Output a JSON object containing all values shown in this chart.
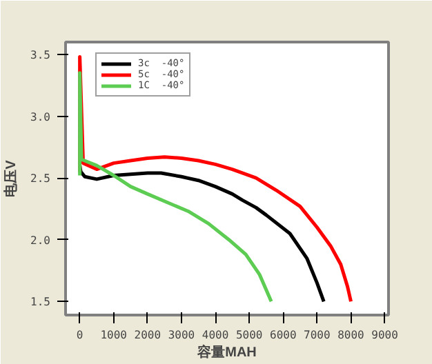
{
  "chart_data": {
    "type": "line",
    "xlabel": "容量MAH",
    "ylabel": "电压V",
    "xlim": [
      -420,
      9110
    ],
    "ylim": [
      1.39,
      3.6
    ],
    "xticks": [
      0,
      1000,
      2000,
      3000,
      4000,
      5000,
      6000,
      7000,
      8000,
      9000
    ],
    "yticks": [
      {
        "value": 1.5,
        "label": "1.5"
      },
      {
        "value": 2.0,
        "label": "2.0"
      },
      {
        "value": 2.5,
        "label": "2.5"
      },
      {
        "value": 3.0,
        "label": "3.0"
      },
      {
        "value": 3.5,
        "label": "3.5"
      }
    ],
    "grid": false,
    "legend": "top left",
    "line_style": "solid",
    "marker": "none",
    "series": [
      {
        "name": "3c  -40°",
        "color": "#000000",
        "x": [
          0,
          30,
          150,
          500,
          1000,
          1500,
          2000,
          2400,
          3000,
          3500,
          4000,
          4500,
          4800,
          5200,
          5500,
          6200,
          6700,
          7000,
          7200
        ],
        "values": [
          2.6,
          2.55,
          2.51,
          2.49,
          2.52,
          2.53,
          2.54,
          2.54,
          2.51,
          2.48,
          2.43,
          2.37,
          2.32,
          2.26,
          2.2,
          2.05,
          1.85,
          1.65,
          1.5
        ]
      },
      {
        "name": "5c  -40°",
        "color": "#ff0000",
        "x": [
          0,
          0,
          100,
          500,
          1000,
          1500,
          2000,
          2500,
          3000,
          3500,
          4000,
          4500,
          5200,
          5800,
          6500,
          7000,
          7400,
          7700,
          7900,
          8000
        ],
        "values": [
          2.55,
          3.48,
          2.62,
          2.57,
          2.62,
          2.64,
          2.66,
          2.67,
          2.66,
          2.64,
          2.61,
          2.57,
          2.5,
          2.4,
          2.27,
          2.1,
          1.95,
          1.8,
          1.62,
          1.5
        ]
      },
      {
        "name": "1C  -40°",
        "color": "#5ccc52",
        "x": [
          0,
          0,
          50,
          500,
          1000,
          1500,
          2000,
          2600,
          3200,
          3800,
          4400,
          4900,
          5300,
          5650
        ],
        "values": [
          2.52,
          3.35,
          2.65,
          2.6,
          2.52,
          2.43,
          2.37,
          2.3,
          2.23,
          2.13,
          2.0,
          1.88,
          1.72,
          1.5
        ]
      }
    ]
  }
}
